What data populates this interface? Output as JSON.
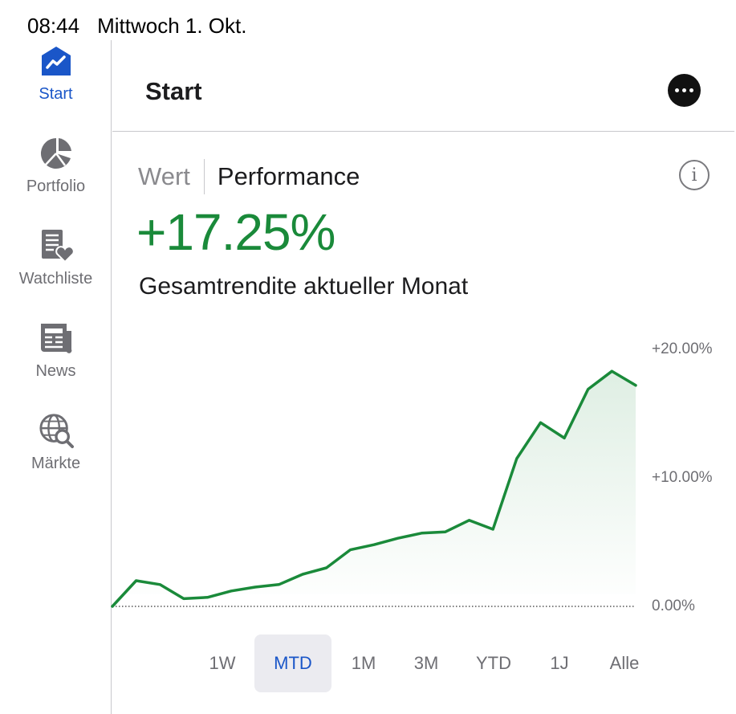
{
  "status_bar": {
    "time": "08:44",
    "date": "Mittwoch 1. Okt."
  },
  "sidebar": {
    "items": [
      {
        "label": "Start",
        "icon": "chart-trend-icon",
        "active": true
      },
      {
        "label": "Portfolio",
        "icon": "pie-chart-icon",
        "active": false
      },
      {
        "label": "Watchliste",
        "icon": "watchlist-heart-icon",
        "active": false
      },
      {
        "label": "News",
        "icon": "newspaper-icon",
        "active": false
      },
      {
        "label": "Märkte",
        "icon": "globe-search-icon",
        "active": false
      }
    ]
  },
  "header": {
    "title": "Start",
    "more_icon": "more-icon"
  },
  "segment": {
    "options": [
      "Wert",
      "Performance"
    ],
    "selected": "Performance"
  },
  "info_icon": "info-icon",
  "performance": {
    "value": "+17.25%",
    "label": "Gesamtrendite aktueller Monat"
  },
  "colors": {
    "accent": "#1a56c8",
    "positive": "#1a8a3a",
    "divider": "#c8c8cc"
  },
  "chart_data": {
    "type": "area",
    "y_axis": {
      "ticks": [
        "+20.00%",
        "+10.00%",
        "0.00%"
      ],
      "range": [
        0,
        20
      ],
      "position": "right"
    },
    "series": [
      {
        "values": [
          0.0,
          2.0,
          1.7,
          0.6,
          0.7,
          1.2,
          1.5,
          1.7,
          2.5,
          3.0,
          4.4,
          4.8,
          5.3,
          5.7,
          5.8,
          6.7,
          6.0,
          11.5,
          14.3,
          13.1,
          16.9,
          18.3,
          17.2
        ]
      }
    ],
    "baseline_dotted": true
  },
  "time_ranges": {
    "options": [
      "1W",
      "MTD",
      "1M",
      "3M",
      "YTD",
      "1J",
      "Alle"
    ],
    "selected": "MTD"
  }
}
